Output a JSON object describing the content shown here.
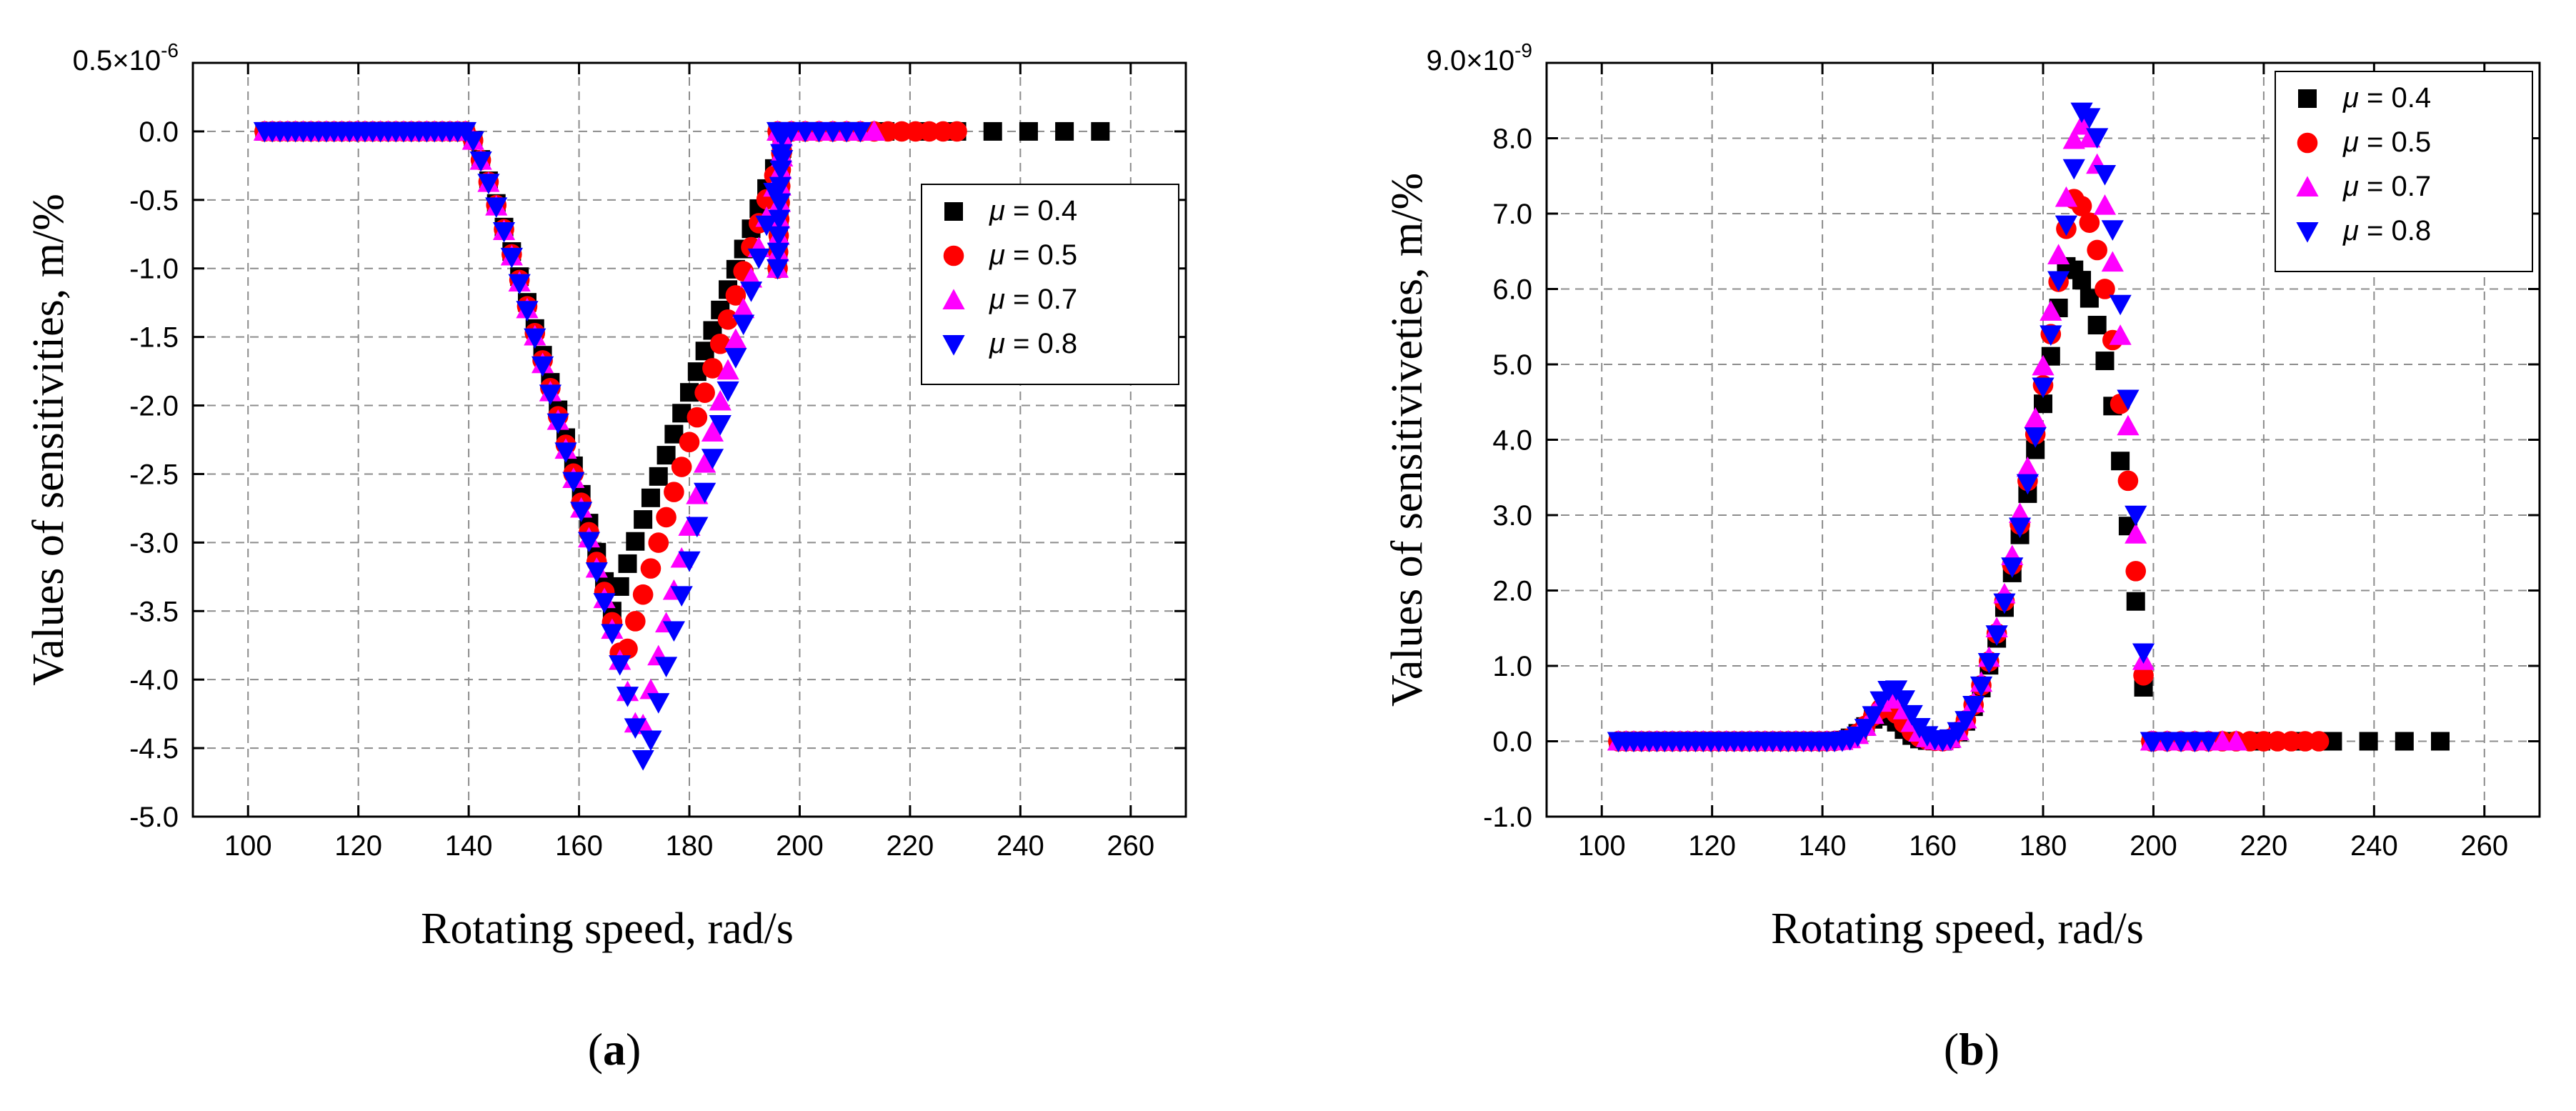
{
  "chart_data": [
    {
      "type": "scatter",
      "panel_label": "a",
      "xlabel": "Rotating speed, rad/s",
      "ylabel": "Values of sensitivities, m/%",
      "exponent_label": "0.5×10",
      "exponent_power": "-6",
      "xlim": [
        90,
        270
      ],
      "ylim": [
        -5.0,
        0.5
      ],
      "xticks": [
        100,
        120,
        140,
        160,
        180,
        200,
        220,
        240,
        260
      ],
      "yticks": [
        0.0,
        -0.5,
        -1.0,
        -1.5,
        -2.0,
        -2.5,
        -3.0,
        -3.5,
        -4.0,
        -4.5,
        -5.0
      ],
      "ytick_labels": [
        "0.0",
        "-0.5",
        "-1.0",
        "-1.5",
        "-2.0",
        "-2.5",
        "-3.0",
        "-3.5",
        "-4.0",
        "-4.5",
        "-5.0"
      ],
      "grid": true,
      "legend_position": "right",
      "series": [
        {
          "name": "μ = 0.4",
          "mu": "μ",
          "value": " = 0.4",
          "color": "#000000",
          "marker": "square",
          "x_end": 256,
          "min": -3.5,
          "min_x": 166
        },
        {
          "name": "μ = 0.5",
          "mu": "μ",
          "value": " = 0.5",
          "color": "#ff0000",
          "marker": "circle",
          "x_end": 230,
          "min": -3.9,
          "min_x": 168
        },
        {
          "name": "μ = 0.7",
          "mu": "μ",
          "value": " = 0.7",
          "color": "#ff00ff",
          "marker": "triangle-up",
          "x_end": 215,
          "min": -4.45,
          "min_x": 171
        },
        {
          "name": "μ = 0.8",
          "mu": "μ",
          "value": " = 0.8",
          "color": "#0000ff",
          "marker": "triangle-down",
          "x_end": 212,
          "min": -4.65,
          "min_x": 172
        }
      ]
    },
    {
      "type": "scatter",
      "panel_label": "b",
      "xlabel": "Rotating speed, rad/s",
      "ylabel": "Values of sensitiviveties, m/%",
      "exponent_label": "9.0×10",
      "exponent_power": "-9",
      "xlim": [
        90,
        270
      ],
      "ylim": [
        -1.0,
        9.0
      ],
      "xticks": [
        100,
        120,
        140,
        160,
        180,
        200,
        220,
        240,
        260
      ],
      "yticks": [
        -1.0,
        0.0,
        1.0,
        2.0,
        3.0,
        4.0,
        5.0,
        6.0,
        7.0,
        8.0
      ],
      "ytick_labels": [
        "-1.0",
        "0.0",
        "1.0",
        "2.0",
        "3.0",
        "4.0",
        "5.0",
        "6.0",
        "7.0",
        "8.0"
      ],
      "grid": true,
      "legend_position": "top-right",
      "series": [
        {
          "name": "μ = 0.4",
          "mu": "μ",
          "value": " = 0.4",
          "color": "#000000",
          "marker": "square",
          "x_end": 256,
          "bump": 0.35,
          "peak": 6.3,
          "peak_x": 184
        },
        {
          "name": "μ = 0.5",
          "mu": "μ",
          "value": " = 0.5",
          "color": "#ff0000",
          "marker": "circle",
          "x_end": 230,
          "bump": 0.45,
          "peak": 7.2,
          "peak_x": 185
        },
        {
          "name": "μ = 0.7",
          "mu": "μ",
          "value": " = 0.7",
          "color": "#ff00ff",
          "marker": "triangle-up",
          "x_end": 215,
          "bump": 0.6,
          "peak": 8.2,
          "peak_x": 186
        },
        {
          "name": "μ = 0.8",
          "mu": "μ",
          "value": " = 0.8",
          "color": "#0000ff",
          "marker": "triangle-down",
          "x_end": 212,
          "bump": 0.7,
          "peak": 8.35,
          "peak_x": 187
        }
      ]
    }
  ]
}
